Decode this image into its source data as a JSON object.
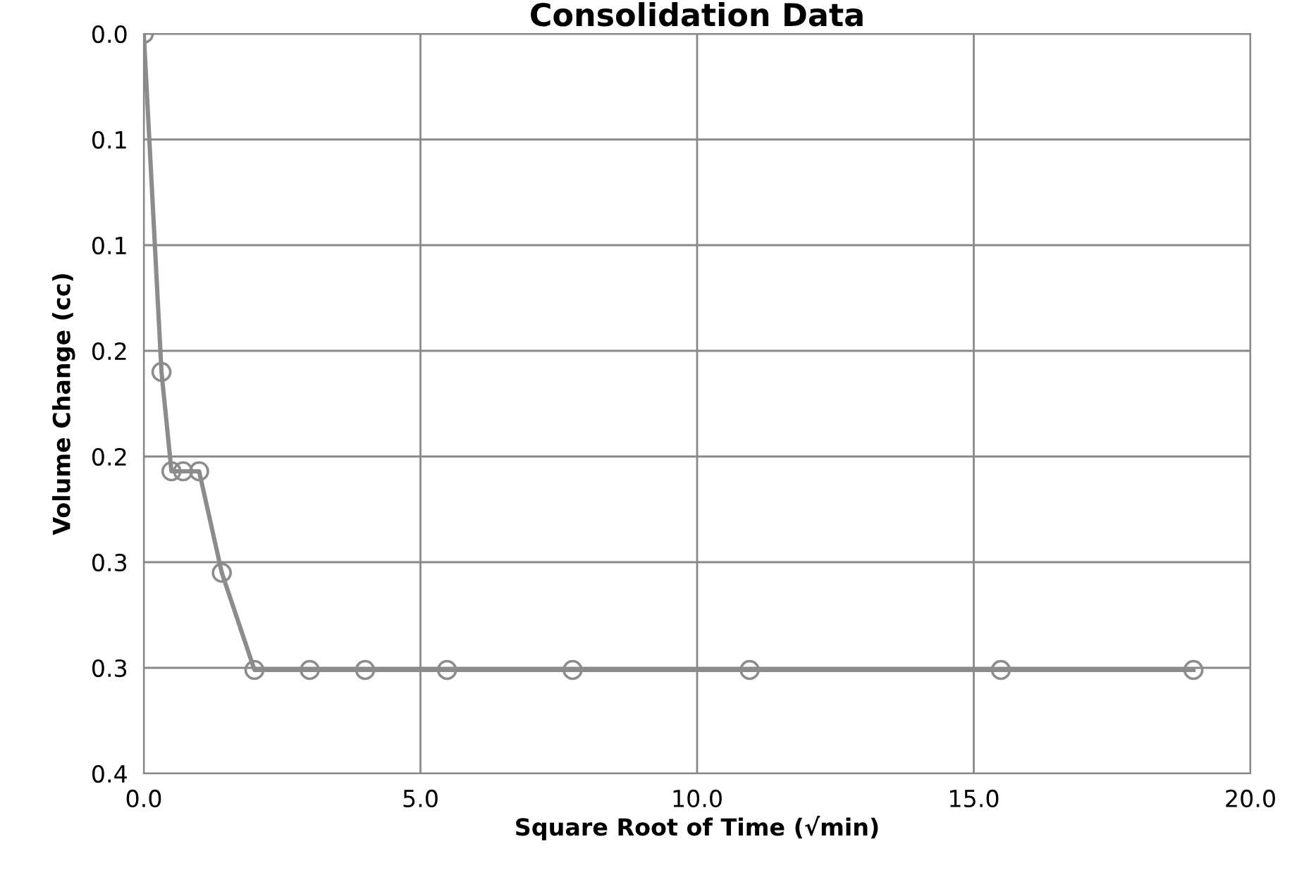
{
  "chart_data": {
    "type": "line",
    "title": "Consolidation Data",
    "xlabel": "Square Root of Time (√min)",
    "ylabel": "Volume Change (cc)",
    "x": [
      0,
      0.32,
      0.5,
      0.71,
      1.0,
      1.41,
      2.0,
      3.0,
      4.0,
      5.48,
      7.75,
      10.95,
      15.49,
      18.97
    ],
    "series": [
      {
        "color": "#8c8c8c",
        "values": [
          0,
          0.16,
          0.207,
          0.207,
          0.207,
          0.255,
          0.301,
          0.301,
          0.301,
          0.301,
          0.301,
          0.301,
          0.301,
          0.301
        ]
      }
    ],
    "xlim": [
      0,
      20
    ],
    "xticks": [
      {
        "value": 0,
        "label": "0.0"
      },
      {
        "value": 5,
        "label": "5.0"
      },
      {
        "value": 10,
        "label": "10.0"
      },
      {
        "value": 15,
        "label": "15.0"
      },
      {
        "value": 20,
        "label": "20.0"
      }
    ],
    "ylim": [
      0.35,
      0
    ],
    "yticks": [
      {
        "value": 0,
        "label": "0.0"
      },
      {
        "value": 0.05,
        "label": "0.1"
      },
      {
        "value": 0.1,
        "label": "0.1"
      },
      {
        "value": 0.15,
        "label": "0.2"
      },
      {
        "value": 0.2,
        "label": "0.2"
      },
      {
        "value": 0.25,
        "label": "0.3"
      },
      {
        "value": 0.3,
        "label": "0.3"
      },
      {
        "value": 0.35,
        "label": "0.4"
      }
    ],
    "grid": true,
    "marker": "circle",
    "line_style": "solid"
  }
}
